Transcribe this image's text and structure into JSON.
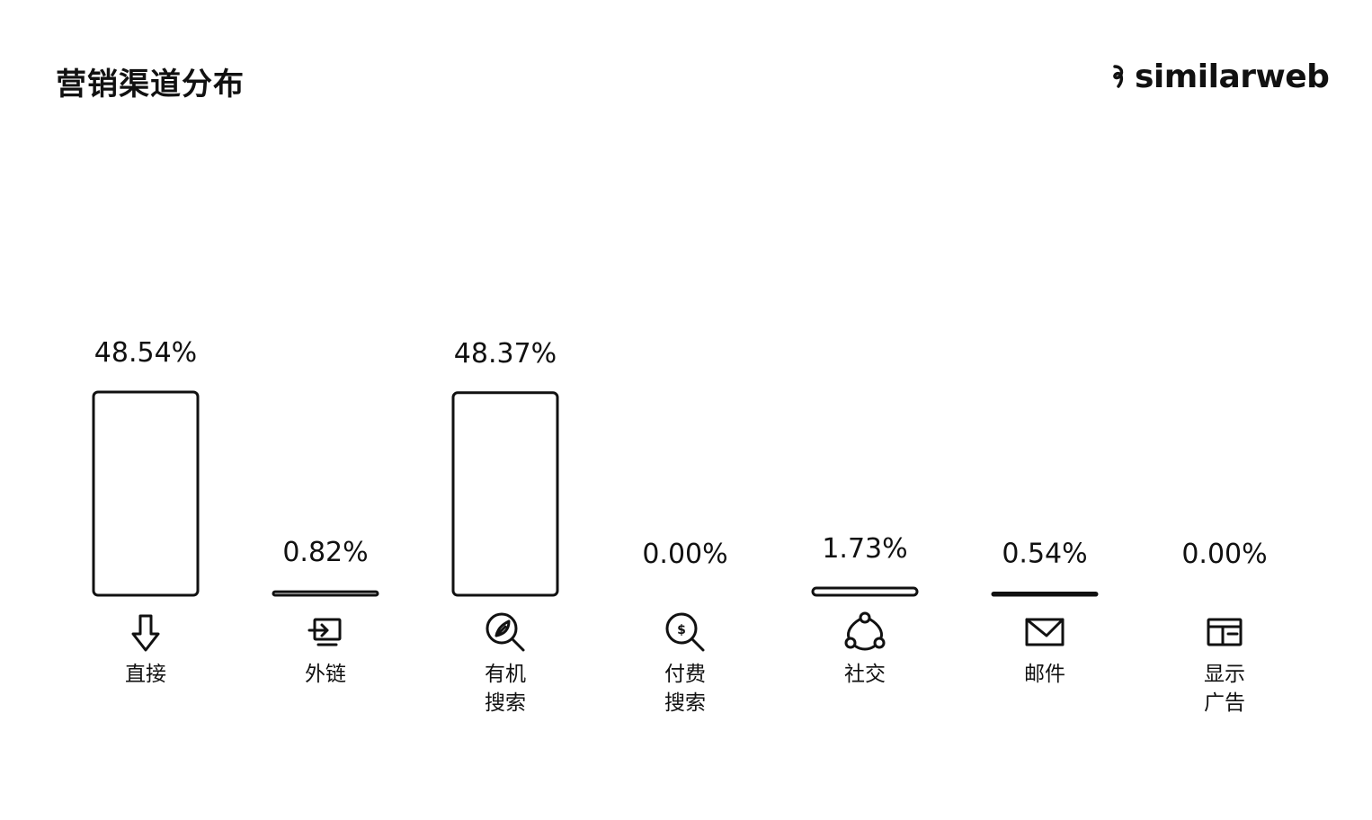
{
  "header": {
    "title": "营销渠道分布",
    "brand": "similarweb"
  },
  "chart_data": {
    "type": "bar",
    "title": "营销渠道分布",
    "categories": [
      "直接",
      "外链",
      "有机 搜索",
      "付费 搜索",
      "社交",
      "邮件",
      "显示 广告"
    ],
    "category_lines": [
      [
        "直接"
      ],
      [
        "外链"
      ],
      [
        "有机",
        "搜索"
      ],
      [
        "付费",
        "搜索"
      ],
      [
        "社交"
      ],
      [
        "邮件"
      ],
      [
        "显示",
        "广告"
      ]
    ],
    "values": [
      48.54,
      0.82,
      48.37,
      0.0,
      1.73,
      0.54,
      0.0
    ],
    "value_labels": [
      "48.54%",
      "0.82%",
      "48.37%",
      "0.00%",
      "1.73%",
      "0.54%",
      "0.00%"
    ],
    "icons": [
      "direct-arrow-icon",
      "referral-link-icon",
      "organic-search-icon",
      "paid-search-icon",
      "social-share-icon",
      "email-icon",
      "display-ad-icon"
    ],
    "unit": "%",
    "ylim": [
      0,
      48.54
    ],
    "xlabel": "",
    "ylabel": "",
    "grid": false,
    "legend": "none"
  }
}
